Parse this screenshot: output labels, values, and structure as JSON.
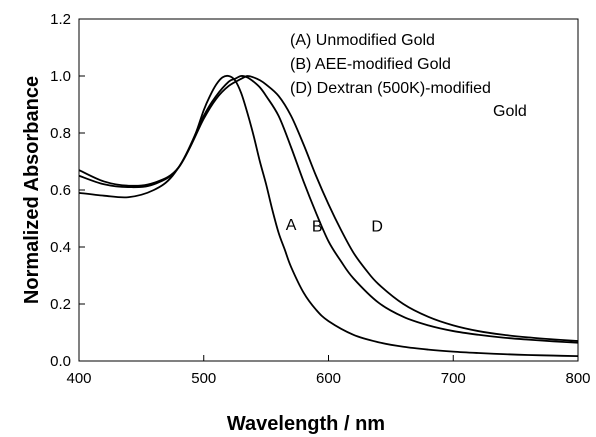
{
  "chart_data": {
    "type": "line",
    "title": "",
    "xlabel": "Wavelength / nm",
    "ylabel": "Normalized Absorbance",
    "xlim": [
      400,
      800
    ],
    "ylim": [
      0.0,
      1.2
    ],
    "xticks": [
      400,
      500,
      600,
      700,
      800
    ],
    "xtick_labels": [
      "400",
      "500",
      "600",
      "700",
      "800"
    ],
    "yticks": [
      0.0,
      0.2,
      0.4,
      0.6,
      0.8,
      1.0,
      1.2
    ],
    "ytick_labels": [
      "0.0",
      "0.2",
      "0.4",
      "0.6",
      "0.8",
      "1.0",
      "1.2"
    ],
    "grid": false,
    "legend": {
      "placement": "top-right",
      "lines": [
        "(A) Unmodified Gold",
        "(B) AEE-modified Gold",
        "(D) Dextran (500K)-modified",
        "Gold"
      ]
    },
    "series": [
      {
        "name": "A",
        "x": [
          400,
          420,
          440,
          460,
          475,
          490,
          500,
          505,
          510,
          515,
          520,
          525,
          530,
          535,
          540,
          545,
          550,
          555,
          560,
          565,
          570,
          580,
          590,
          600,
          620,
          640,
          660,
          680,
          700,
          720,
          740,
          760,
          780,
          800
        ],
        "y": [
          0.59,
          0.58,
          0.575,
          0.6,
          0.65,
          0.76,
          0.88,
          0.93,
          0.97,
          0.995,
          1.0,
          0.985,
          0.94,
          0.87,
          0.79,
          0.7,
          0.62,
          0.53,
          0.45,
          0.39,
          0.33,
          0.24,
          0.18,
          0.14,
          0.092,
          0.066,
          0.05,
          0.04,
          0.033,
          0.028,
          0.024,
          0.021,
          0.019,
          0.017
        ]
      },
      {
        "name": "B",
        "x": [
          400,
          420,
          440,
          460,
          480,
          500,
          510,
          520,
          525,
          530,
          535,
          540,
          545,
          550,
          560,
          570,
          580,
          590,
          600,
          610,
          620,
          640,
          660,
          680,
          700,
          720,
          740,
          760,
          780,
          800
        ],
        "y": [
          0.65,
          0.62,
          0.61,
          0.62,
          0.68,
          0.86,
          0.93,
          0.98,
          0.99,
          1.0,
          0.995,
          0.98,
          0.96,
          0.93,
          0.86,
          0.75,
          0.63,
          0.52,
          0.42,
          0.35,
          0.29,
          0.205,
          0.155,
          0.125,
          0.105,
          0.092,
          0.082,
          0.075,
          0.069,
          0.064
        ]
      },
      {
        "name": "D",
        "x": [
          400,
          420,
          440,
          460,
          480,
          500,
          510,
          520,
          530,
          535,
          540,
          545,
          550,
          560,
          570,
          580,
          590,
          600,
          610,
          620,
          630,
          640,
          660,
          680,
          700,
          720,
          740,
          760,
          780,
          800
        ],
        "y": [
          0.67,
          0.63,
          0.615,
          0.625,
          0.68,
          0.85,
          0.92,
          0.965,
          0.99,
          1.0,
          0.995,
          0.985,
          0.97,
          0.93,
          0.86,
          0.76,
          0.65,
          0.55,
          0.46,
          0.38,
          0.32,
          0.27,
          0.2,
          0.155,
          0.125,
          0.105,
          0.092,
          0.083,
          0.076,
          0.07
        ]
      }
    ],
    "annotations": [
      {
        "text": "A",
        "x": 570,
        "y": 0.46
      },
      {
        "text": "B",
        "x": 591,
        "y": 0.455
      },
      {
        "text": "D",
        "x": 639,
        "y": 0.455
      }
    ]
  }
}
